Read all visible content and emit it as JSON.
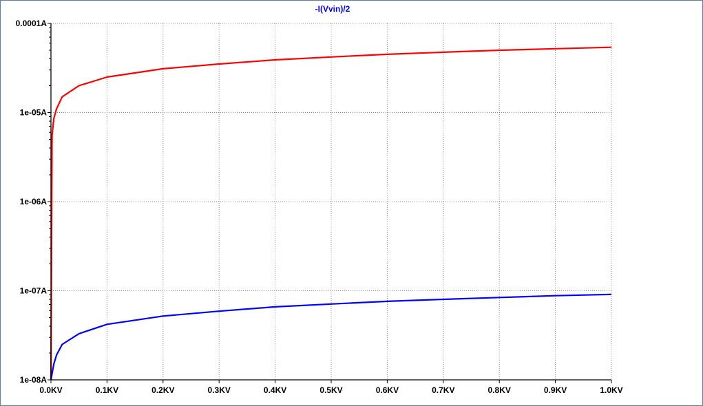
{
  "chart_data": {
    "type": "line",
    "title": "-I(Vvin)/2",
    "title_color": "#0000ff",
    "xlabel": "",
    "ylabel": "",
    "x_scale": "linear",
    "y_scale": "log",
    "xlim": [
      0,
      1
    ],
    "ylim": [
      1e-08,
      0.0001
    ],
    "grid": true,
    "x_ticks": [
      "0.0KV",
      "0.1KV",
      "0.2KV",
      "0.3KV",
      "0.4KV",
      "0.5KV",
      "0.6KV",
      "0.7KV",
      "0.8KV",
      "0.9KV",
      "1.0KV"
    ],
    "y_ticks": [
      "0.0001A",
      "1e-05A",
      "1e-06A",
      "1e-07A",
      "1e-08A"
    ],
    "series": [
      {
        "color": "#ff0000",
        "x": [
          0.0,
          0.002,
          0.005,
          0.01,
          0.02,
          0.05,
          0.1,
          0.2,
          0.3,
          0.4,
          0.5,
          0.6,
          0.7,
          0.8,
          0.9,
          1.0
        ],
        "y": [
          1e-08,
          5.5e-06,
          8.5e-06,
          1.1e-05,
          1.5e-05,
          2e-05,
          2.5e-05,
          3.1e-05,
          3.5e-05,
          3.9e-05,
          4.2e-05,
          4.5e-05,
          4.75e-05,
          5e-05,
          5.2e-05,
          5.4e-05
        ]
      },
      {
        "color": "#0000ff",
        "x": [
          0.0,
          0.005,
          0.01,
          0.02,
          0.05,
          0.1,
          0.2,
          0.3,
          0.4,
          0.5,
          0.6,
          0.7,
          0.8,
          0.9,
          1.0
        ],
        "y": [
          1e-08,
          1.5e-08,
          1.9e-08,
          2.5e-08,
          3.3e-08,
          4.2e-08,
          5.2e-08,
          5.9e-08,
          6.6e-08,
          7.1e-08,
          7.6e-08,
          8e-08,
          8.4e-08,
          8.8e-08,
          9.1e-08
        ]
      }
    ]
  }
}
